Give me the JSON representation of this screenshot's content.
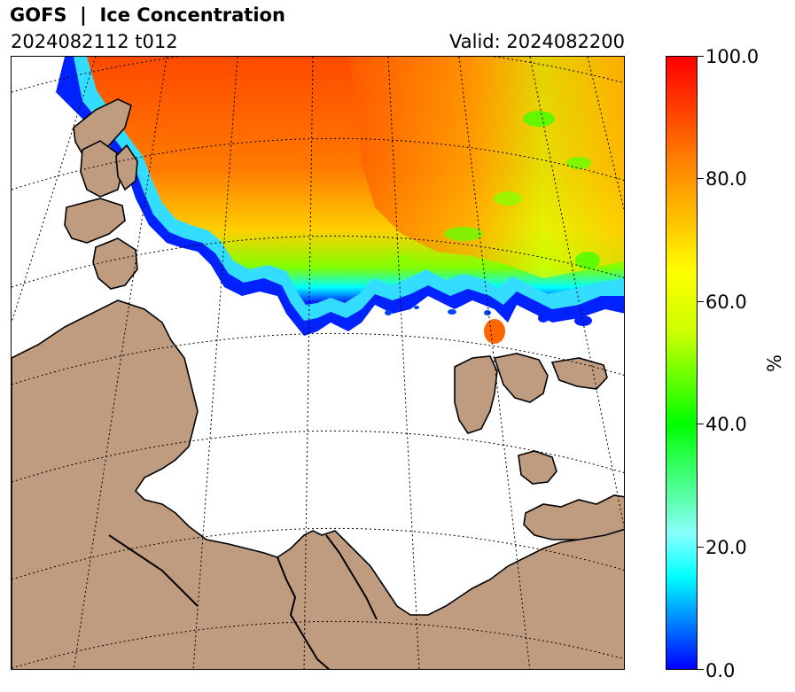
{
  "header": {
    "title": "GOFS  |  Ice Concentration",
    "run": "2024082112 t012",
    "valid": "Valid: 2024082200"
  },
  "colors": {
    "land": "#bf9b7f",
    "ocean": "#ffffff",
    "coastline": "#000000",
    "ice_high": "#ff4400",
    "ice_mid": "#ffff00",
    "ice_low": "#00ff00",
    "ice_edge": "#0000ff"
  },
  "colorbar": {
    "label": "%",
    "ticks": [
      "0.0",
      "20.0",
      "40.0",
      "60.0",
      "80.0",
      "100.0"
    ],
    "min": 0,
    "max": 100,
    "colors": [
      "#0000ff",
      "#00ffff",
      "#00ff00",
      "#ffff00",
      "#ff8800",
      "#ff0000"
    ]
  },
  "map": {
    "region": "Barents-Kara Sea / Arctic",
    "graticule": "dotted",
    "icons": [
      "land-mass",
      "sea-ice-field",
      "graticule-lines"
    ]
  }
}
